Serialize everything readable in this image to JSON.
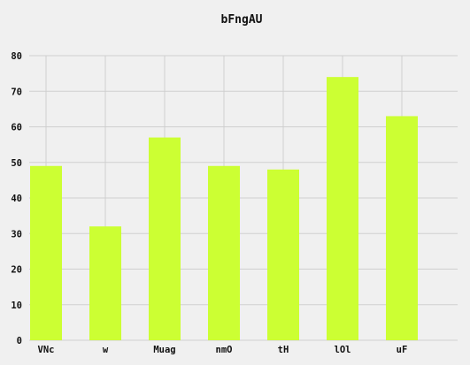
{
  "chart_data": {
    "type": "bar",
    "title": "bFngAU",
    "xlabel": "",
    "ylabel": "",
    "categories": [
      "VNc",
      "w",
      "Muag",
      "nmO",
      "tH",
      "lOl",
      "uF"
    ],
    "values": [
      49,
      32,
      57,
      49,
      48,
      74,
      63
    ],
    "ylim": [
      0,
      80
    ],
    "yticks": [
      0,
      10,
      20,
      30,
      40,
      50,
      60,
      70,
      80
    ],
    "grid": true,
    "legend": "none",
    "bar_color": "#ccff33",
    "background": "#f0f0f0",
    "grid_color": "#cfcfcf"
  }
}
